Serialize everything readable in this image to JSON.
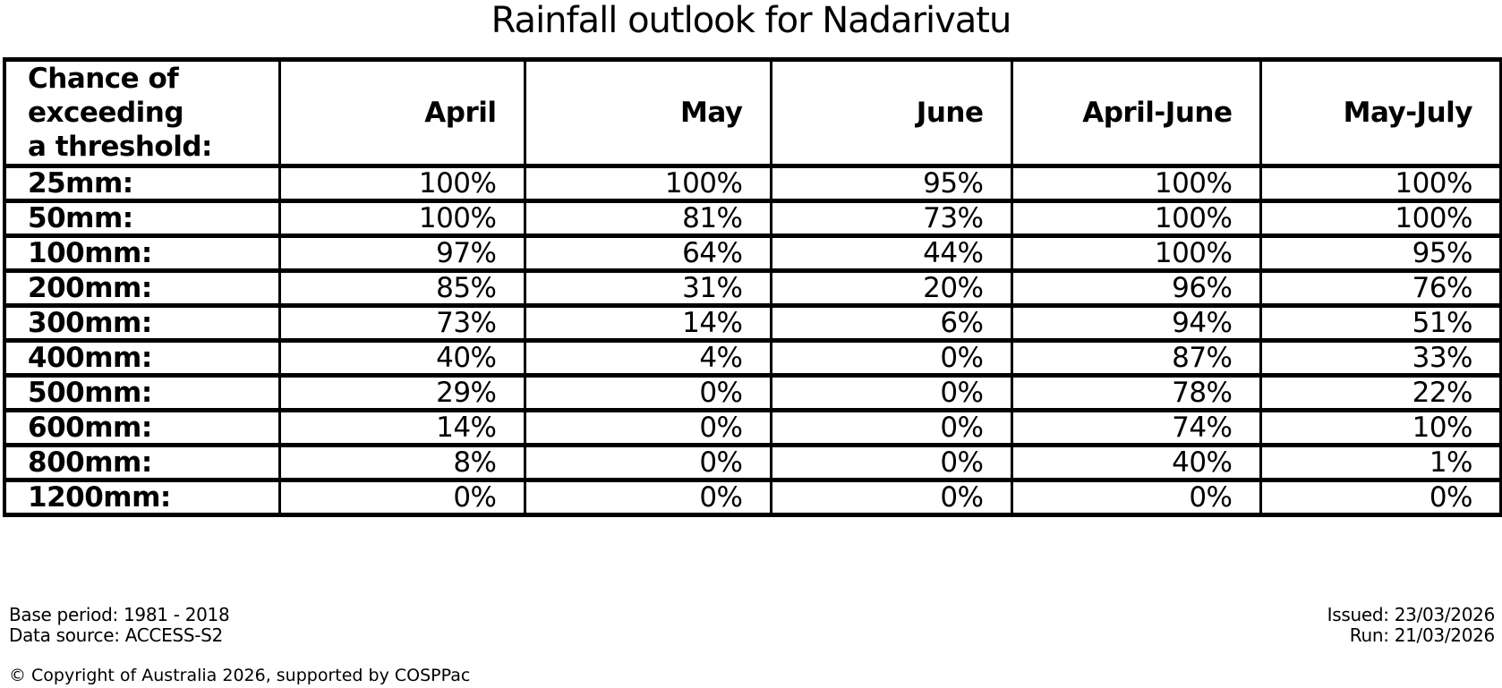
{
  "title": "Rainfall outlook for Nadarivatu",
  "chart_data": {
    "type": "table",
    "title": "Rainfall outlook for Nadarivatu",
    "row_header": "Chance of\nexceeding\na threshold:",
    "columns": [
      "April",
      "May",
      "June",
      "April-June",
      "May-July"
    ],
    "rows": [
      {
        "label": "25mm:",
        "values": [
          "100%",
          "100%",
          "95%",
          "100%",
          "100%"
        ]
      },
      {
        "label": "50mm:",
        "values": [
          "100%",
          "81%",
          "73%",
          "100%",
          "100%"
        ]
      },
      {
        "label": "100mm:",
        "values": [
          "97%",
          "64%",
          "44%",
          "100%",
          "95%"
        ]
      },
      {
        "label": "200mm:",
        "values": [
          "85%",
          "31%",
          "20%",
          "96%",
          "76%"
        ]
      },
      {
        "label": "300mm:",
        "values": [
          "73%",
          "14%",
          "6%",
          "94%",
          "51%"
        ]
      },
      {
        "label": "400mm:",
        "values": [
          "40%",
          "4%",
          "0%",
          "87%",
          "33%"
        ]
      },
      {
        "label": "500mm:",
        "values": [
          "29%",
          "0%",
          "0%",
          "78%",
          "22%"
        ]
      },
      {
        "label": "600mm:",
        "values": [
          "14%",
          "0%",
          "0%",
          "74%",
          "10%"
        ]
      },
      {
        "label": "800mm:",
        "values": [
          "8%",
          "0%",
          "0%",
          "40%",
          "1%"
        ]
      },
      {
        "label": "1200mm:",
        "values": [
          "0%",
          "0%",
          "0%",
          "0%",
          "0%"
        ]
      }
    ],
    "colors": {
      "border": "#000000",
      "background": "#ffffff",
      "text": "#000000"
    }
  },
  "footer": {
    "base_period": "Base period: 1981 - 2018",
    "data_source": "Data source: ACCESS-S2",
    "issued": "Issued: 23/03/2026",
    "run": "Run: 21/03/2026",
    "copyright": "© Copyright of Australia 2026, supported by COSPPac"
  }
}
